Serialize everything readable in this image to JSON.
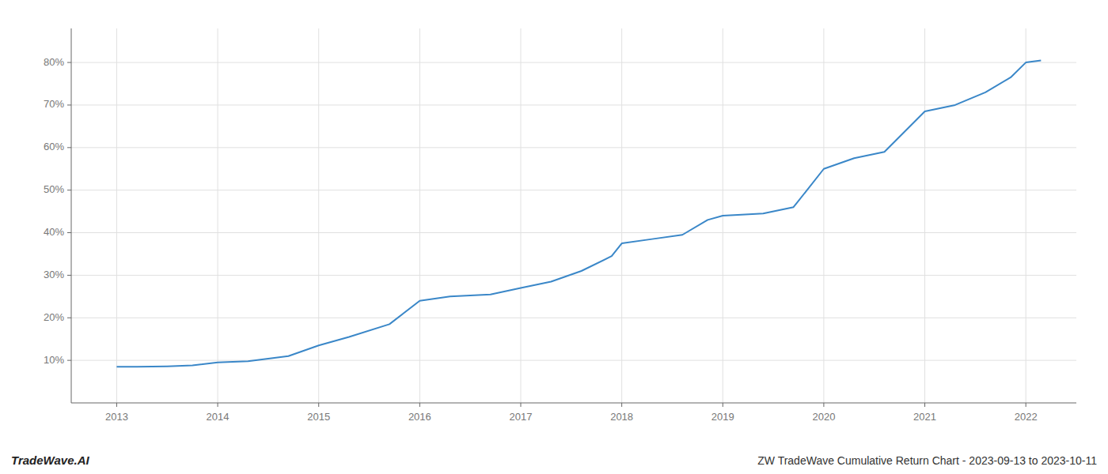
{
  "chart_data": {
    "type": "line",
    "title": "ZW TradeWave Cumulative Return Chart - 2023-09-13 to 2023-10-11",
    "annotations": [
      "TradeWave.AI"
    ],
    "x": [
      2013,
      2013.2,
      2013.5,
      2013.75,
      2014,
      2014.3,
      2014.7,
      2015,
      2015.3,
      2015.7,
      2016,
      2016.3,
      2016.7,
      2017,
      2017.3,
      2017.6,
      2017.9,
      2018,
      2018.3,
      2018.6,
      2018.85,
      2019,
      2019.15,
      2019.4,
      2019.7,
      2020,
      2020.3,
      2020.6,
      2021,
      2021.3,
      2021.6,
      2021.85,
      2022,
      2022.15
    ],
    "values": [
      8.5,
      8.5,
      8.6,
      8.8,
      9.5,
      9.8,
      11.0,
      13.5,
      15.5,
      18.5,
      24.0,
      25.0,
      25.5,
      27.0,
      28.5,
      31.0,
      34.5,
      37.5,
      38.5,
      39.5,
      43.0,
      44.0,
      44.2,
      44.5,
      46.0,
      55.0,
      57.5,
      59.0,
      68.5,
      70.0,
      73.0,
      76.5,
      80.0,
      80.5
    ],
    "color": "#3a87c8",
    "xlim": [
      2012.55,
      2022.5
    ],
    "ylim": [
      0,
      88
    ],
    "xticks": [
      2013,
      2014,
      2015,
      2016,
      2017,
      2018,
      2019,
      2020,
      2021,
      2022
    ],
    "yticks": [
      {
        "value": 10,
        "label": "10%"
      },
      {
        "value": 20,
        "label": "20%"
      },
      {
        "value": 30,
        "label": "30%"
      },
      {
        "value": 40,
        "label": "40%"
      },
      {
        "value": 50,
        "label": "50%"
      },
      {
        "value": 60,
        "label": "60%"
      },
      {
        "value": 70,
        "label": "70%"
      },
      {
        "value": 80,
        "label": "80%"
      }
    ],
    "grid": true
  }
}
